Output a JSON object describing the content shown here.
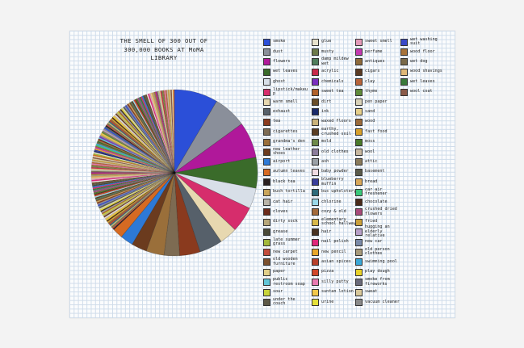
{
  "colors": {
    "page": "#f3f3f3",
    "sheet": "#fbfcfd",
    "grid": "#cfdcea"
  },
  "chart_data": {
    "type": "pie",
    "title_lines": [
      "THE SMELL OF 300 OUT OF",
      "300,000 BOOKS AT MoMA",
      "LIBRARY"
    ],
    "legend_columns": [
      [
        {
          "label": "smoke",
          "color": "#2b4fd8"
        },
        {
          "label": "dust",
          "color": "#8a8f9a"
        },
        {
          "label": "flowers",
          "color": "#b0189a"
        },
        {
          "label": "wet leaves",
          "color": "#3a6b2a"
        },
        {
          "label": "ghost",
          "color": "#d8dfe8"
        },
        {
          "label": "lipstick/makeup",
          "color": "#d62d6c"
        },
        {
          "label": "warm smell",
          "color": "#e7d8b0"
        },
        {
          "label": "exhaust",
          "color": "#56606a"
        },
        {
          "label": "tea",
          "color": "#8a3a1e"
        },
        {
          "label": "cigarettes",
          "color": "#7d6b52"
        },
        {
          "label": "grandma's den",
          "color": "#9a6f3a"
        },
        {
          "label": "new leather shoes",
          "color": "#6b3b1e"
        },
        {
          "label": "airport",
          "color": "#2d79d6"
        },
        {
          "label": "autumn leaves",
          "color": "#d66a22"
        },
        {
          "label": "black tea",
          "color": "#2a2020"
        },
        {
          "label": "bush tortilla",
          "color": "#c9a55a"
        },
        {
          "label": "cat hair",
          "color": "#b9b4a8"
        },
        {
          "label": "cloves",
          "color": "#6b2a1a"
        },
        {
          "label": "dirty sock",
          "color": "#b7a77a"
        },
        {
          "label": "grease",
          "color": "#4a4a38"
        },
        {
          "label": "late summer grass",
          "color": "#a3b83a"
        },
        {
          "label": "new carpet",
          "color": "#c14c3c"
        },
        {
          "label": "old wooden furniture",
          "color": "#7a4f2d"
        },
        {
          "label": "paper",
          "color": "#e2d08a"
        },
        {
          "label": "public restroom soap",
          "color": "#62c6d8"
        },
        {
          "label": "sour",
          "color": "#c8d43a"
        },
        {
          "label": "under the couch",
          "color": "#5e5a48"
        }
      ],
      [
        {
          "label": "glue",
          "color": "#e8e2cc"
        },
        {
          "label": "musty",
          "color": "#6d7a4a"
        },
        {
          "label": "damp mildew wet",
          "color": "#4f7d5c"
        },
        {
          "label": "acrylic",
          "color": "#c82a4a"
        },
        {
          "label": "chemicals",
          "color": "#7a2fbf"
        },
        {
          "label": "sweet tea",
          "color": "#b0612a"
        },
        {
          "label": "dirt",
          "color": "#6b4f2a"
        },
        {
          "label": "ink",
          "color": "#1a2a6b"
        },
        {
          "label": "waxed floors",
          "color": "#c9b27a"
        },
        {
          "label": "earthy, crushed soil",
          "color": "#5a3d22"
        },
        {
          "label": "mold",
          "color": "#6e8a4a"
        },
        {
          "label": "old clothes",
          "color": "#8b7d9b"
        },
        {
          "label": "ash",
          "color": "#9aa0a6"
        },
        {
          "label": "baby powder",
          "color": "#f0dce2"
        },
        {
          "label": "blueberry muffin",
          "color": "#3a3f9b"
        },
        {
          "label": "bus upholstery",
          "color": "#2e6b7a"
        },
        {
          "label": "chlorine",
          "color": "#9ad8e8"
        },
        {
          "label": "cozy & old",
          "color": "#a36a3a"
        },
        {
          "label": "elementary school hallway",
          "color": "#d8b84a"
        },
        {
          "label": "hair",
          "color": "#4a3322"
        },
        {
          "label": "nail polish",
          "color": "#e0287a"
        },
        {
          "label": "new pencil",
          "color": "#e8a72a"
        },
        {
          "label": "asian spices",
          "color": "#b8402a"
        },
        {
          "label": "pizza",
          "color": "#d2482a"
        },
        {
          "label": "silly putty",
          "color": "#e87ab0"
        },
        {
          "label": "suntan lotion",
          "color": "#f2c84a"
        },
        {
          "label": "urine",
          "color": "#e4e03a"
        }
      ],
      [
        {
          "label": "sweet smell",
          "color": "#e39ab8"
        },
        {
          "label": "perfume",
          "color": "#c43ab0"
        },
        {
          "label": "antiques",
          "color": "#8e6a3a"
        },
        {
          "label": "cigars",
          "color": "#5a3a22"
        },
        {
          "label": "clay",
          "color": "#b8643a"
        },
        {
          "label": "thyme",
          "color": "#5f8a3a"
        },
        {
          "label": "pen paper",
          "color": "#d9d2b8"
        },
        {
          "label": "sand",
          "color": "#e6cf8a"
        },
        {
          "label": "wood",
          "color": "#9a6a3a"
        },
        {
          "label": "fast food",
          "color": "#d8a02a"
        },
        {
          "label": "moss",
          "color": "#4a7a2a"
        },
        {
          "label": "wool",
          "color": "#c8b8a0"
        },
        {
          "label": "attic",
          "color": "#8a7a5a"
        },
        {
          "label": "basement",
          "color": "#5a5a4a"
        },
        {
          "label": "bread",
          "color": "#d9a85a"
        },
        {
          "label": "car air freshener",
          "color": "#3ac87a"
        },
        {
          "label": "chocolate",
          "color": "#4a2a1a"
        },
        {
          "label": "crushed dried flowers",
          "color": "#a84a7a"
        },
        {
          "label": "fried",
          "color": "#caa03a"
        },
        {
          "label": "hugging an elderly relative",
          "color": "#b8a0c8"
        },
        {
          "label": "new car",
          "color": "#7a8aa8"
        },
        {
          "label": "old person clothes",
          "color": "#a89a7a"
        },
        {
          "label": "swimming pool",
          "color": "#3aa8d8"
        },
        {
          "label": "play dough",
          "color": "#e8d22a"
        },
        {
          "label": "smoke from fireworks",
          "color": "#6a6a7a"
        },
        {
          "label": "sweat",
          "color": "#d8c89a"
        },
        {
          "label": "vacuum cleaner",
          "color": "#8a8a8a"
        }
      ],
      [
        {
          "label": "wet washing suit",
          "color": "#3a4ac8"
        },
        {
          "label": "wood floor",
          "color": "#a8733a"
        },
        {
          "label": "wet dog",
          "color": "#7a6a4a"
        },
        {
          "label": "wood shavings",
          "color": "#e0b878"
        },
        {
          "label": "wet leaves",
          "color": "#3a7a3a"
        },
        {
          "label": "wool coat",
          "color": "#8a5a4a"
        }
      ]
    ],
    "slices_note": "Hundreds of thin wedges; the largest wedges are smoke, dust, flowers, wet leaves, and other leading entries."
  }
}
